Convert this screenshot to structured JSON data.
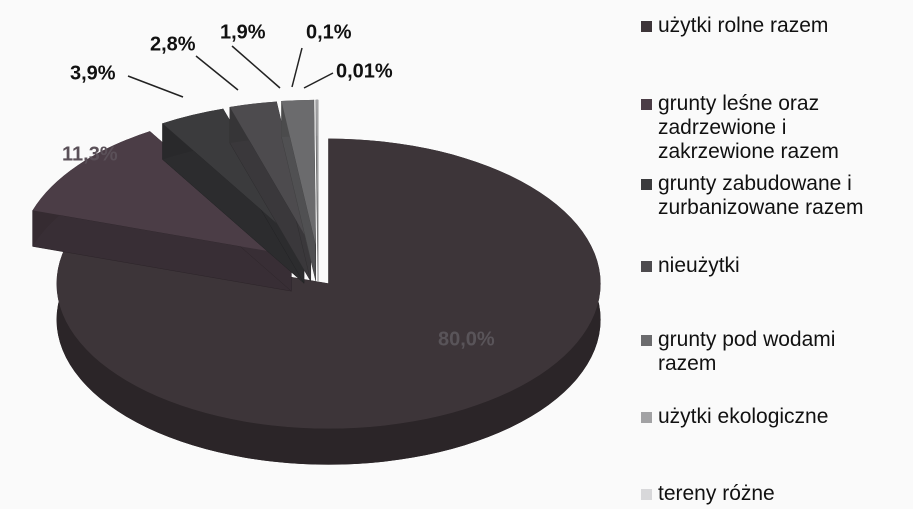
{
  "chart_data": {
    "type": "pie",
    "categories": [
      "użytki rolne razem",
      "grunty leśne oraz zadrzewione i zakrzewione razem",
      "grunty zabudowane i zurbanizowane razem",
      "nieużytki",
      "grunty pod wodami razem",
      "użytki ekologiczne",
      "tereny różne"
    ],
    "values": [
      80.0,
      11.3,
      3.9,
      2.8,
      1.9,
      0.1,
      0.01
    ],
    "value_labels": [
      "80,0%",
      "11,3%",
      "3,9%",
      "2,8%",
      "1,9%",
      "0,1%",
      "0,01%"
    ],
    "colors": [
      "#3d3539",
      "#4b3d46",
      "#3b3b3d",
      "#4d4b4e",
      "#6b6b6d",
      "#a2a2a4",
      "#d8d8da"
    ],
    "legend": "right"
  }
}
